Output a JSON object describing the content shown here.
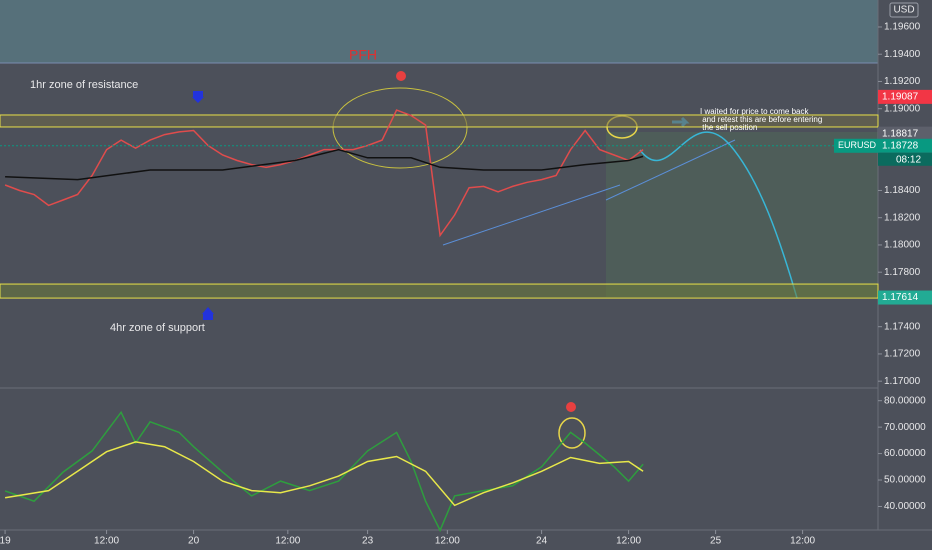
{
  "chart_data": [
    {
      "type": "line",
      "symbol": "EURUSD",
      "currency": "USD",
      "annotations": {
        "pfh": "PFH",
        "resistance": "1hr zone of resistance",
        "support": "4hr zone of support",
        "note": [
          "I waited for price to come back",
          " and retest this are before entering",
          " the sell position"
        ]
      },
      "x": [
        0,
        2,
        4,
        6,
        8,
        10,
        12,
        14,
        16,
        18,
        20,
        22,
        24,
        26,
        28,
        30,
        32,
        34,
        36,
        38,
        40,
        42,
        44,
        46,
        48,
        50,
        52,
        54,
        56,
        58,
        60,
        62,
        64,
        66,
        68,
        70,
        72,
        74,
        76,
        78,
        80,
        82,
        84,
        86,
        88
      ],
      "series": [
        {
          "color": "#e04c4c",
          "values": [
            1.1844,
            1.184,
            1.1837,
            1.1829,
            1.1833,
            1.1837,
            1.1851,
            1.187,
            1.1877,
            1.1871,
            1.1877,
            1.1881,
            1.1883,
            1.1884,
            1.1873,
            1.1866,
            1.1862,
            1.1859,
            1.1857,
            1.1859,
            1.1862,
            1.1866,
            1.187,
            1.187,
            1.187,
            1.1873,
            1.1877,
            1.1899,
            1.1895,
            1.1888,
            1.1807,
            1.1822,
            1.1842,
            1.1843,
            1.1839,
            1.1843,
            1.1846,
            1.1848,
            1.1851,
            1.187,
            1.1884,
            1.187,
            1.1866,
            1.1862,
            1.187
          ]
        },
        {
          "color": "#111111",
          "x": [
            0,
            10,
            20,
            30,
            40,
            46,
            50,
            56,
            60,
            66,
            74,
            80,
            86,
            88
          ],
          "values": [
            1.185,
            1.1848,
            1.1855,
            1.1855,
            1.1862,
            1.187,
            1.1864,
            1.1864,
            1.1857,
            1.1855,
            1.1855,
            1.1859,
            1.1862,
            1.1865
          ]
        }
      ],
      "zones": [
        {
          "range": [
            1.18866,
            1.18954
          ]
        },
        {
          "range": [
            1.1761,
            1.17713
          ]
        }
      ],
      "price_labels": [
        {
          "value": 1.19087,
          "label": "1.19087",
          "color": "#f23645"
        },
        {
          "value": 1.18817,
          "label": "1.18817",
          "color": "#5d606b"
        },
        {
          "value": 1.17614,
          "label": "1.17614",
          "color": "#22ab94"
        }
      ],
      "last_price": {
        "value": 1.18728,
        "label": "1.18728",
        "countdown": "08:12",
        "color": "#089981"
      },
      "ylim": [
        1.1695,
        1.19798
      ],
      "yticks": [
        {
          "value": 1.17,
          "label": "1.17000"
        },
        {
          "value": 1.172,
          "label": "1.17200"
        },
        {
          "value": 1.174,
          "label": "1.17400"
        },
        {
          "value": 1.178,
          "label": "1.17800"
        },
        {
          "value": 1.18,
          "label": "1.18000"
        },
        {
          "value": 1.182,
          "label": "1.18200"
        },
        {
          "value": 1.184,
          "label": "1.18400"
        },
        {
          "value": 1.19,
          "label": "1.19000"
        },
        {
          "value": 1.192,
          "label": "1.19200"
        },
        {
          "value": 1.194,
          "label": "1.19400"
        },
        {
          "value": 1.196,
          "label": "1.19600"
        }
      ],
      "xlim": [
        -0.7,
        120.4
      ],
      "xticks": [
        {
          "value": 0,
          "label": "19"
        },
        {
          "value": 14,
          "label": "12:00"
        },
        {
          "value": 26,
          "label": "20"
        },
        {
          "value": 39,
          "label": "12:00"
        },
        {
          "value": 50,
          "label": "23"
        },
        {
          "value": 61,
          "label": "12:00"
        },
        {
          "value": 74,
          "label": "24"
        },
        {
          "value": 86,
          "label": "12:00"
        },
        {
          "value": 98,
          "label": "25"
        },
        {
          "value": 110,
          "label": "12:00"
        }
      ]
    },
    {
      "type": "line",
      "series": [
        {
          "color": "#2e9e3e",
          "x": [
            0,
            4,
            8,
            12,
            16,
            18,
            20,
            24,
            26,
            30,
            34,
            38,
            42,
            46,
            50,
            54,
            56,
            58,
            60,
            62,
            66,
            70,
            74,
            78,
            80,
            84,
            86,
            88
          ],
          "values": [
            45.9,
            42,
            53,
            61,
            75.6,
            64,
            72,
            68,
            62.6,
            53,
            44,
            49.6,
            46,
            49.6,
            61,
            68,
            57,
            42,
            31,
            44,
            46,
            47.8,
            55,
            68,
            64,
            55,
            49.6,
            56
          ]
        },
        {
          "color": "#e8e84a",
          "x": [
            0,
            6,
            10,
            14,
            18,
            22,
            26,
            30,
            34,
            38,
            42,
            46,
            50,
            54,
            58,
            62,
            66,
            70,
            74,
            78,
            82,
            86,
            88
          ],
          "values": [
            43.3,
            46,
            53.3,
            60.7,
            64.4,
            62.6,
            57,
            49.6,
            46,
            45.2,
            47.8,
            51.5,
            57,
            58.9,
            53.3,
            40.4,
            45.2,
            48.9,
            53.3,
            58.5,
            56.3,
            57,
            53.3
          ]
        }
      ],
      "ylim": [
        31.1,
        84.8
      ],
      "yticks": [
        {
          "value": 40,
          "label": "40.00000"
        },
        {
          "value": 50,
          "label": "50.00000"
        },
        {
          "value": 60,
          "label": "60.00000"
        },
        {
          "value": 70,
          "label": "70.00000"
        },
        {
          "value": 80,
          "label": "80.00000"
        }
      ]
    }
  ]
}
